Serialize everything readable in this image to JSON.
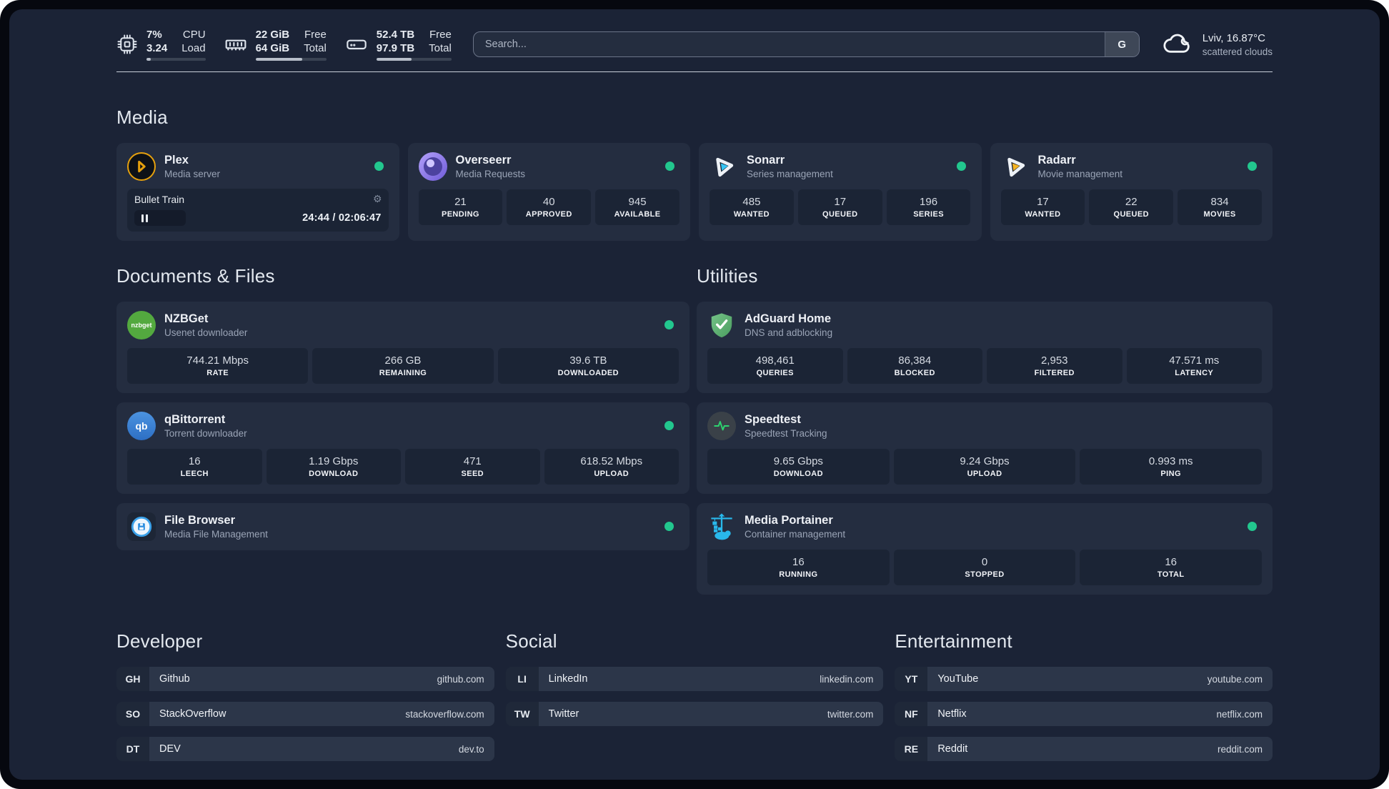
{
  "topbar": {
    "resources": [
      {
        "icon": "cpu-icon",
        "values": [
          "7%",
          "3.24"
        ],
        "labels": [
          "CPU",
          "Load"
        ],
        "progress": 7
      },
      {
        "icon": "memory-icon",
        "values": [
          "22 GiB",
          "64 GiB"
        ],
        "labels": [
          "Free",
          "Total"
        ],
        "progress": 66
      },
      {
        "icon": "disk-icon",
        "values": [
          "52.4 TB",
          "97.9 TB"
        ],
        "labels": [
          "Free",
          "Total"
        ],
        "progress": 47
      }
    ],
    "search": {
      "placeholder": "Search...",
      "engine_button": "G"
    },
    "weather": {
      "location": "Lviv, 16.87°C",
      "condition": "scattered clouds"
    }
  },
  "sections": {
    "media": {
      "title": "Media",
      "apps": [
        {
          "name": "Plex",
          "subtitle": "Media server",
          "player": {
            "track": "Bullet Train",
            "time": "24:44 / 02:06:47"
          }
        },
        {
          "name": "Overseerr",
          "subtitle": "Media Requests",
          "stats": [
            {
              "value": "21",
              "label": "PENDING"
            },
            {
              "value": "40",
              "label": "APPROVED"
            },
            {
              "value": "945",
              "label": "AVAILABLE"
            }
          ]
        },
        {
          "name": "Sonarr",
          "subtitle": "Series management",
          "stats": [
            {
              "value": "485",
              "label": "WANTED"
            },
            {
              "value": "17",
              "label": "QUEUED"
            },
            {
              "value": "196",
              "label": "SERIES"
            }
          ]
        },
        {
          "name": "Radarr",
          "subtitle": "Movie management",
          "stats": [
            {
              "value": "17",
              "label": "WANTED"
            },
            {
              "value": "22",
              "label": "QUEUED"
            },
            {
              "value": "834",
              "label": "MOVIES"
            }
          ]
        }
      ]
    },
    "documents": {
      "title": "Documents & Files",
      "apps": [
        {
          "name": "NZBGet",
          "subtitle": "Usenet downloader",
          "icon_text": "nzbget",
          "stats": [
            {
              "value": "744.21 Mbps",
              "label": "RATE"
            },
            {
              "value": "266 GB",
              "label": "REMAINING"
            },
            {
              "value": "39.6 TB",
              "label": "DOWNLOADED"
            }
          ]
        },
        {
          "name": "qBittorrent",
          "subtitle": "Torrent downloader",
          "icon_text": "qb",
          "stats": [
            {
              "value": "16",
              "label": "LEECH"
            },
            {
              "value": "1.19 Gbps",
              "label": "DOWNLOAD"
            },
            {
              "value": "471",
              "label": "SEED"
            },
            {
              "value": "618.52 Mbps",
              "label": "UPLOAD"
            }
          ]
        },
        {
          "name": "File Browser",
          "subtitle": "Media File Management"
        }
      ]
    },
    "utilities": {
      "title": "Utilities",
      "apps": [
        {
          "name": "AdGuard Home",
          "subtitle": "DNS and adblocking",
          "stats": [
            {
              "value": "498,461",
              "label": "QUERIES"
            },
            {
              "value": "86,384",
              "label": "BLOCKED"
            },
            {
              "value": "2,953",
              "label": "FILTERED"
            },
            {
              "value": "47.571 ms",
              "label": "LATENCY"
            }
          ]
        },
        {
          "name": "Speedtest",
          "subtitle": "Speedtest Tracking",
          "stats": [
            {
              "value": "9.65 Gbps",
              "label": "DOWNLOAD"
            },
            {
              "value": "9.24 Gbps",
              "label": "UPLOAD"
            },
            {
              "value": "0.993 ms",
              "label": "PING"
            }
          ]
        },
        {
          "name": "Media Portainer",
          "subtitle": "Container management",
          "stats": [
            {
              "value": "16",
              "label": "RUNNING"
            },
            {
              "value": "0",
              "label": "STOPPED"
            },
            {
              "value": "16",
              "label": "TOTAL"
            }
          ]
        }
      ]
    },
    "developer": {
      "title": "Developer",
      "links": [
        {
          "abbr": "GH",
          "name": "Github",
          "url": "github.com"
        },
        {
          "abbr": "SO",
          "name": "StackOverflow",
          "url": "stackoverflow.com"
        },
        {
          "abbr": "DT",
          "name": "DEV",
          "url": "dev.to"
        }
      ]
    },
    "social": {
      "title": "Social",
      "links": [
        {
          "abbr": "LI",
          "name": "LinkedIn",
          "url": "linkedin.com"
        },
        {
          "abbr": "TW",
          "name": "Twitter",
          "url": "twitter.com"
        }
      ]
    },
    "entertainment": {
      "title": "Entertainment",
      "links": [
        {
          "abbr": "YT",
          "name": "YouTube",
          "url": "youtube.com"
        },
        {
          "abbr": "NF",
          "name": "Netflix",
          "url": "netflix.com"
        },
        {
          "abbr": "RE",
          "name": "Reddit",
          "url": "reddit.com"
        }
      ]
    }
  },
  "colors": {
    "status_online": "#22c78e",
    "accent_plex": "#e5a00d",
    "accent_sonarr": "#35c5f4",
    "accent_radarr": "#f5b423"
  }
}
